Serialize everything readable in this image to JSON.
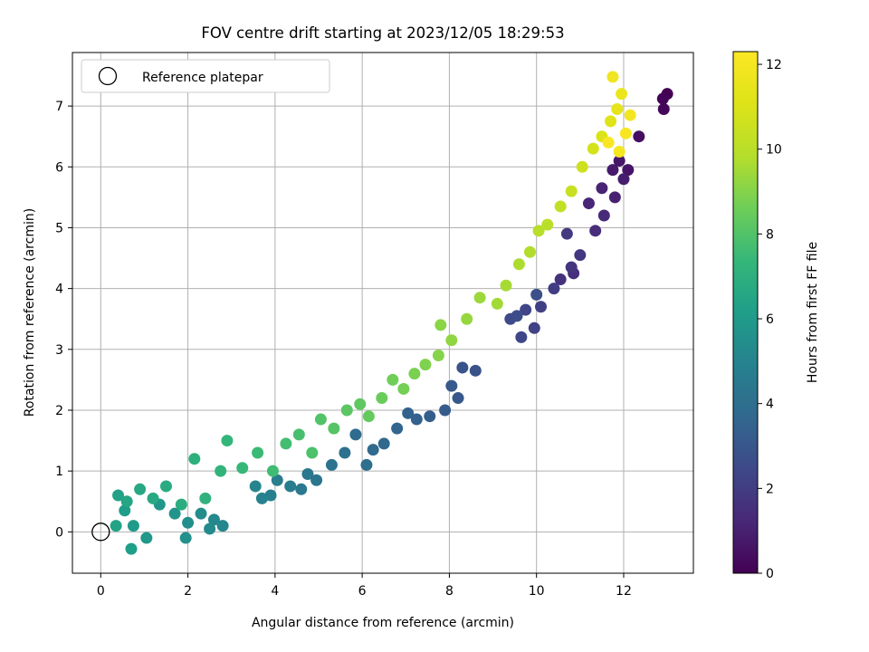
{
  "chart_data": {
    "type": "scatter",
    "title": "FOV centre drift starting at 2023/12/05 18:29:53",
    "xlabel": "Angular distance from reference (arcmin)",
    "ylabel": "Rotation from reference (arcmin)",
    "xlim": [
      -0.65,
      13.6
    ],
    "ylim": [
      -0.68,
      7.88
    ],
    "xticks": [
      0,
      2,
      4,
      6,
      8,
      10,
      12
    ],
    "yticks": [
      0,
      1,
      2,
      3,
      4,
      5,
      6,
      7
    ],
    "grid": true,
    "legend": {
      "placement": "top-left",
      "entries": [
        "Reference platepar"
      ]
    },
    "reference_point": {
      "x": 0,
      "y": 0,
      "label": "Reference platepar"
    },
    "colorbar": {
      "label": "Hours from first FF file",
      "min": 0,
      "max": 12.3,
      "ticks": [
        0,
        2,
        4,
        6,
        8,
        10,
        12
      ],
      "colormap": "viridis"
    },
    "series": [
      {
        "points": [
          [
            13.0,
            7.2,
            0.0
          ],
          [
            12.9,
            7.12,
            0.1
          ],
          [
            12.92,
            6.95,
            0.2
          ],
          [
            12.35,
            6.5,
            0.4
          ],
          [
            12.1,
            5.95,
            0.6
          ],
          [
            11.9,
            6.1,
            0.7
          ],
          [
            11.75,
            5.95,
            0.8
          ],
          [
            12.0,
            5.8,
            0.9
          ],
          [
            11.8,
            5.5,
            1.0
          ],
          [
            11.5,
            5.65,
            1.1
          ],
          [
            11.2,
            5.4,
            1.2
          ],
          [
            11.55,
            5.2,
            1.3
          ],
          [
            11.35,
            4.95,
            1.4
          ],
          [
            10.85,
            4.25,
            1.5
          ],
          [
            10.55,
            4.15,
            1.6
          ],
          [
            10.8,
            4.35,
            1.7
          ],
          [
            11.0,
            4.55,
            1.8
          ],
          [
            10.7,
            4.9,
            1.9
          ],
          [
            10.4,
            4.0,
            2.0
          ],
          [
            10.1,
            3.7,
            2.1
          ],
          [
            9.95,
            3.35,
            2.2
          ],
          [
            9.75,
            3.65,
            2.3
          ],
          [
            9.65,
            3.2,
            2.4
          ],
          [
            9.4,
            3.5,
            2.5
          ],
          [
            9.55,
            3.55,
            2.6
          ],
          [
            10.0,
            3.9,
            2.7
          ],
          [
            8.6,
            2.65,
            2.8
          ],
          [
            8.3,
            2.7,
            2.9
          ],
          [
            8.2,
            2.2,
            3.0
          ],
          [
            8.05,
            2.4,
            3.1
          ],
          [
            7.9,
            2.0,
            3.2
          ],
          [
            7.55,
            1.9,
            3.3
          ],
          [
            7.25,
            1.85,
            3.4
          ],
          [
            7.05,
            1.95,
            3.5
          ],
          [
            6.8,
            1.7,
            3.6
          ],
          [
            6.5,
            1.45,
            3.7
          ],
          [
            6.25,
            1.35,
            3.8
          ],
          [
            5.85,
            1.6,
            3.9
          ],
          [
            6.1,
            1.1,
            4.0
          ],
          [
            5.6,
            1.3,
            4.1
          ],
          [
            5.3,
            1.1,
            4.2
          ],
          [
            4.95,
            0.85,
            4.3
          ],
          [
            4.75,
            0.95,
            4.4
          ],
          [
            4.6,
            0.7,
            4.5
          ],
          [
            4.35,
            0.75,
            4.6
          ],
          [
            4.05,
            0.85,
            4.7
          ],
          [
            3.9,
            0.6,
            4.8
          ],
          [
            3.7,
            0.55,
            4.9
          ],
          [
            3.55,
            0.75,
            5.0
          ],
          [
            2.8,
            0.1,
            5.1
          ],
          [
            2.6,
            0.2,
            5.2
          ],
          [
            2.5,
            0.05,
            5.3
          ],
          [
            2.3,
            0.3,
            5.4
          ],
          [
            2.0,
            0.15,
            5.5
          ],
          [
            1.95,
            -0.1,
            5.6
          ],
          [
            1.7,
            0.3,
            5.7
          ],
          [
            1.35,
            0.45,
            5.8
          ],
          [
            1.05,
            -0.1,
            5.9
          ],
          [
            0.75,
            0.1,
            6.0
          ],
          [
            0.55,
            0.35,
            6.1
          ],
          [
            0.7,
            -0.28,
            6.2
          ],
          [
            0.4,
            0.6,
            6.3
          ],
          [
            0.35,
            0.1,
            6.4
          ],
          [
            0.6,
            0.5,
            6.5
          ],
          [
            0.9,
            0.7,
            6.6
          ],
          [
            1.2,
            0.55,
            6.7
          ],
          [
            1.5,
            0.75,
            6.8
          ],
          [
            1.85,
            0.45,
            6.9
          ],
          [
            2.15,
            1.2,
            7.0
          ],
          [
            2.4,
            0.55,
            7.1
          ],
          [
            2.75,
            1.0,
            7.2
          ],
          [
            2.9,
            1.5,
            7.3
          ],
          [
            3.25,
            1.05,
            7.4
          ],
          [
            3.6,
            1.3,
            7.5
          ],
          [
            3.95,
            1.0,
            7.6
          ],
          [
            4.25,
            1.45,
            7.7
          ],
          [
            4.55,
            1.6,
            7.8
          ],
          [
            4.85,
            1.3,
            7.9
          ],
          [
            5.05,
            1.85,
            8.0
          ],
          [
            5.35,
            1.7,
            8.1
          ],
          [
            5.65,
            2.0,
            8.2
          ],
          [
            5.95,
            2.1,
            8.3
          ],
          [
            6.15,
            1.9,
            8.4
          ],
          [
            6.45,
            2.2,
            8.5
          ],
          [
            6.7,
            2.5,
            8.6
          ],
          [
            6.95,
            2.35,
            8.7
          ],
          [
            7.2,
            2.6,
            8.8
          ],
          [
            7.45,
            2.75,
            8.9
          ],
          [
            7.75,
            2.9,
            9.0
          ],
          [
            7.8,
            3.4,
            9.1
          ],
          [
            8.05,
            3.15,
            9.2
          ],
          [
            8.4,
            3.5,
            9.3
          ],
          [
            8.7,
            3.85,
            9.4
          ],
          [
            9.1,
            3.75,
            9.5
          ],
          [
            9.3,
            4.05,
            9.6
          ],
          [
            9.6,
            4.4,
            9.7
          ],
          [
            9.85,
            4.6,
            9.8
          ],
          [
            10.05,
            4.95,
            9.9
          ],
          [
            10.25,
            5.05,
            10.0
          ],
          [
            10.55,
            5.35,
            10.2
          ],
          [
            10.8,
            5.6,
            10.4
          ],
          [
            11.05,
            6.0,
            10.6
          ],
          [
            11.3,
            6.3,
            10.8
          ],
          [
            11.5,
            6.5,
            11.0
          ],
          [
            11.7,
            6.75,
            11.2
          ],
          [
            11.85,
            6.95,
            11.4
          ],
          [
            11.95,
            7.2,
            11.6
          ],
          [
            11.75,
            7.48,
            11.8
          ],
          [
            12.15,
            6.85,
            11.9
          ],
          [
            11.9,
            6.25,
            12.0
          ],
          [
            12.05,
            6.55,
            12.1
          ],
          [
            11.65,
            6.4,
            12.2
          ]
        ]
      }
    ]
  }
}
